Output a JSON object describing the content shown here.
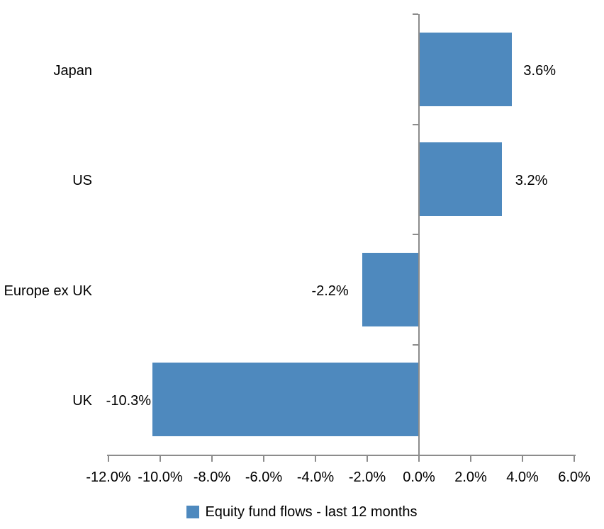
{
  "chart_data": {
    "type": "bar",
    "orientation": "horizontal",
    "title": "",
    "categories": [
      "Japan",
      "US",
      "Europe ex UK",
      "UK"
    ],
    "series": [
      {
        "name": "Equity fund flows - last 12 months",
        "values": [
          3.6,
          3.2,
          -2.2,
          -10.3
        ],
        "labels": [
          "3.6%",
          "3.2%",
          "-2.2%",
          "-10.3%"
        ]
      }
    ],
    "xlim": [
      -12,
      6
    ],
    "x_ticks": [
      -12,
      -10,
      -8,
      -6,
      -4,
      -2,
      0,
      2,
      4,
      6
    ],
    "x_tick_labels": [
      "-12.0%",
      "-10.0%",
      "-8.0%",
      "-6.0%",
      "-4.0%",
      "-2.0%",
      "0.0%",
      "2.0%",
      "4.0%",
      "6.0%"
    ],
    "grid": false,
    "legend": {
      "position": "bottom",
      "label": "Equity fund flows - last 12 months"
    },
    "colors": {
      "bar": "#4E89BE",
      "axis": "#8C8C8C",
      "text": "#000000",
      "background": "#FFFFFF"
    }
  }
}
